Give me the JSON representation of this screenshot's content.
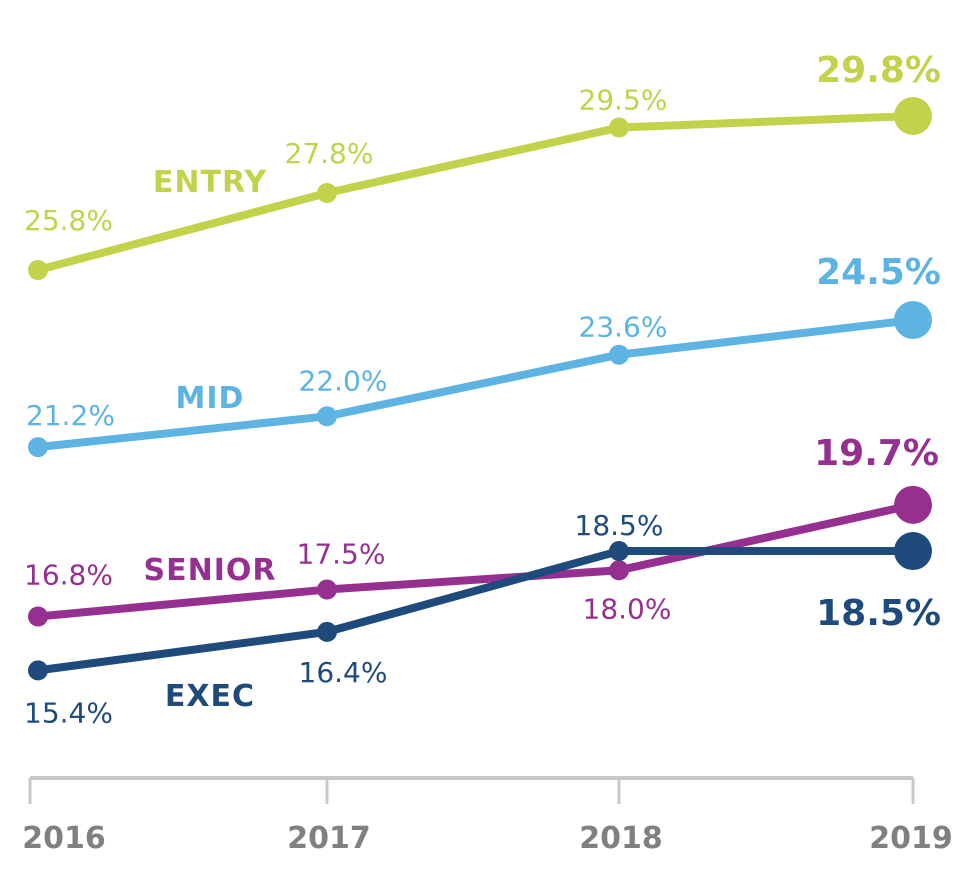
{
  "chart_data": {
    "type": "line",
    "title": "",
    "xlabel": "",
    "ylabel": "",
    "x": [
      "2016",
      "2017",
      "2018",
      "2019"
    ],
    "ylim": [
      15.4,
      29.8
    ],
    "grid": false,
    "legend": "inline labels",
    "axis_color": "#c8c8c8",
    "tick_label_color": "#808080",
    "series": [
      {
        "name": "ENTRY",
        "color": "#c2d24a",
        "values": [
          25.8,
          27.8,
          29.5,
          29.8
        ],
        "labels": [
          "25.8%",
          "27.8%",
          "29.5%",
          "29.8%"
        ]
      },
      {
        "name": "MID",
        "color": "#5db4e3",
        "values": [
          21.2,
          22.0,
          23.6,
          24.5
        ],
        "labels": [
          "21.2%",
          "22.0%",
          "23.6%",
          "24.5%"
        ]
      },
      {
        "name": "SENIOR",
        "color": "#963090",
        "values": [
          16.8,
          17.5,
          18.0,
          19.7
        ],
        "labels": [
          "16.8%",
          "17.5%",
          "18.0%",
          "19.7%"
        ]
      },
      {
        "name": "EXEC",
        "color": "#1e4a7c",
        "values": [
          15.4,
          16.4,
          18.5,
          18.5
        ],
        "labels": [
          "15.4%",
          "16.4%",
          "18.5%",
          "18.5%"
        ]
      }
    ]
  }
}
